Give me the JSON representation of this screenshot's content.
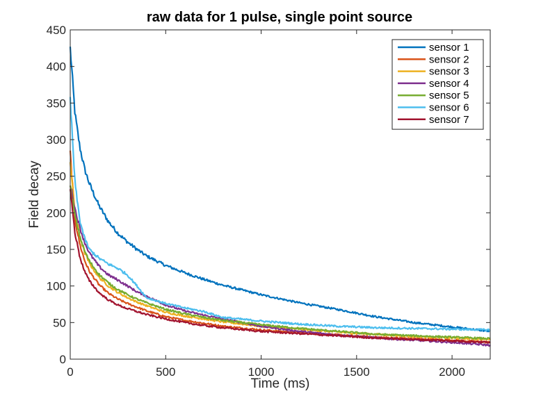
{
  "chart_data": {
    "type": "line",
    "title": "raw data for 1 pulse, single point source",
    "xlabel": "Time (ms)",
    "ylabel": "Field decay",
    "xlim": [
      0,
      2200
    ],
    "ylim": [
      0,
      450
    ],
    "xticks": [
      0,
      500,
      1000,
      1500,
      2000
    ],
    "yticks": [
      0,
      50,
      100,
      150,
      200,
      250,
      300,
      350,
      400,
      450
    ],
    "grid": false,
    "legend_position": "top-right",
    "x": [
      0,
      25,
      50,
      75,
      100,
      150,
      200,
      250,
      300,
      350,
      400,
      500,
      600,
      700,
      800,
      1000,
      1200,
      1400,
      1600,
      1800,
      2000,
      2200
    ],
    "series": [
      {
        "name": "sensor 1",
        "color": "#0072BD",
        "values": [
          425,
          335,
          290,
          260,
          240,
          210,
          188,
          172,
          160,
          150,
          141,
          128,
          118,
          109,
          101,
          88,
          77,
          68,
          58,
          50,
          44,
          38
        ]
      },
      {
        "name": "sensor 2",
        "color": "#D95319",
        "values": [
          282,
          190,
          157,
          135,
          120,
          102,
          90,
          82,
          76,
          71,
          66,
          58,
          53,
          49,
          45,
          40,
          36,
          33,
          30,
          28,
          26,
          23
        ]
      },
      {
        "name": "sensor 3",
        "color": "#EDB120",
        "values": [
          270,
          200,
          168,
          146,
          131,
          112,
          100,
          91,
          84,
          78,
          73,
          64,
          59,
          55,
          51,
          45,
          41,
          37,
          34,
          31,
          29,
          27
        ]
      },
      {
        "name": "sensor 4",
        "color": "#7E2F8E",
        "values": [
          240,
          205,
          180,
          160,
          145,
          127,
          115,
          108,
          100,
          92,
          86,
          74,
          66,
          60,
          55,
          45,
          38,
          33,
          29,
          26,
          23,
          19
        ]
      },
      {
        "name": "sensor 5",
        "color": "#77AC30",
        "values": [
          235,
          196,
          168,
          148,
          134,
          116,
          104,
          95,
          88,
          82,
          77,
          68,
          62,
          57,
          53,
          47,
          42,
          38,
          34,
          32,
          30,
          28
        ]
      },
      {
        "name": "sensor 6",
        "color": "#4DBEEE",
        "values": [
          355,
          240,
          190,
          165,
          150,
          138,
          130,
          124,
          115,
          100,
          84,
          76,
          70,
          65,
          57,
          52,
          48,
          45,
          43,
          42,
          41,
          40
        ]
      },
      {
        "name": "sensor 7",
        "color": "#A2142F",
        "values": [
          232,
          172,
          140,
          120,
          107,
          91,
          81,
          74,
          69,
          65,
          61,
          55,
          50,
          46,
          43,
          38,
          35,
          32,
          29,
          27,
          25,
          23
        ]
      }
    ]
  }
}
